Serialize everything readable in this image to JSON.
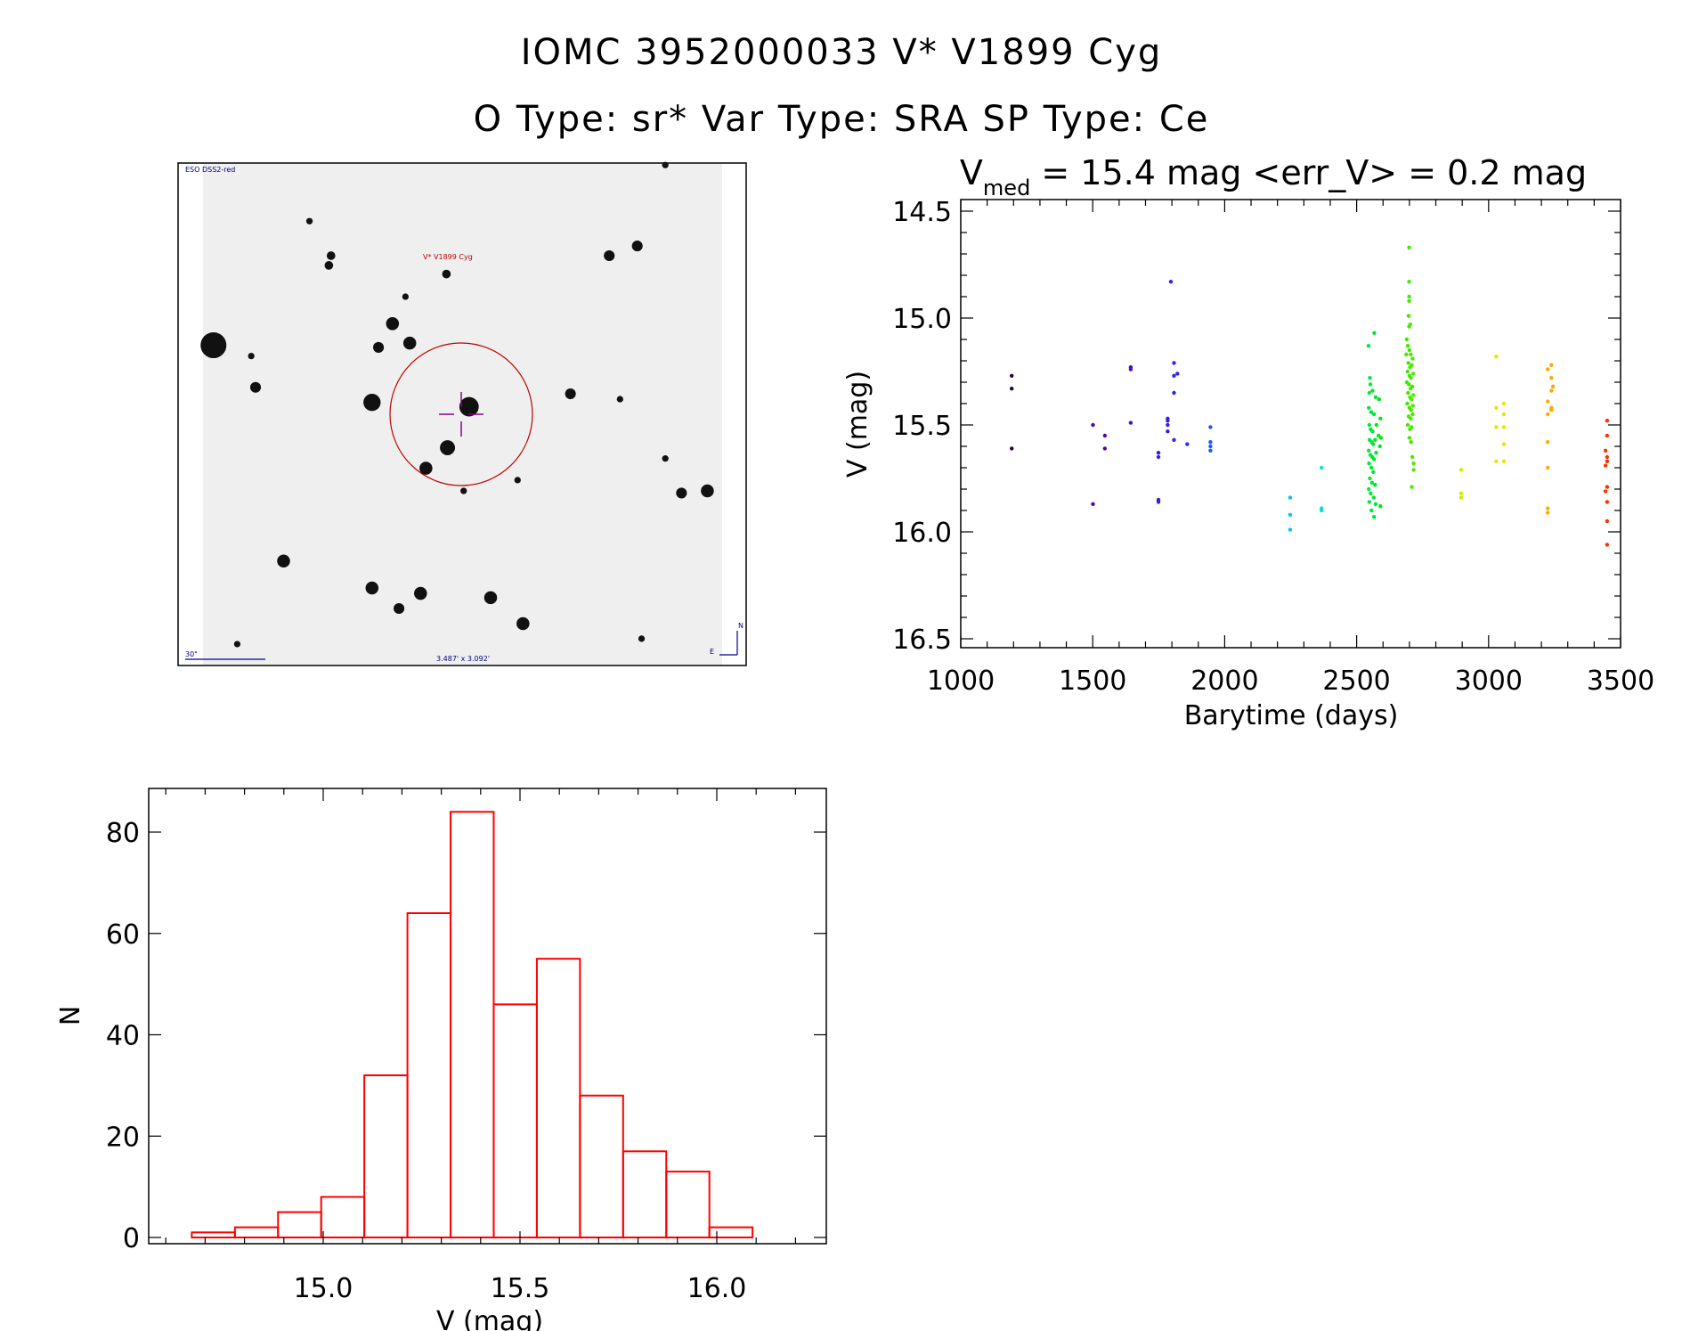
{
  "title": {
    "line1": "IOMC 3952000033    V* V1899 Cyg",
    "line2": "O Type: sr*   Var Type: SRA   SP Type: Ce"
  },
  "finder_image": {
    "survey_label": "ESO DSS2-red",
    "target_label": "V* V1899 Cyg",
    "scale_label": "30\"",
    "fov_label": "3.487' x 3.092'",
    "north_label": "N",
    "east_label": "E"
  },
  "chart_data": [
    {
      "type": "scatter",
      "title_prefix": "V",
      "title_subscript": "med",
      "title_rest": " = 15.4 mag <err_V> = 0.2 mag",
      "xlabel": "Barytime (days)",
      "ylabel": "V (mag)",
      "xlim": [
        1000,
        3500
      ],
      "ylim": [
        16.5,
        14.5
      ],
      "y_inverted": true,
      "xticks": [
        "1000",
        "1500",
        "2000",
        "2500",
        "3000",
        "3500"
      ],
      "yticks": [
        "14.5",
        "15.0",
        "15.5",
        "16.0",
        "16.5"
      ],
      "color_by": "time (rainbow)",
      "points": [
        [
          1193,
          15.27
        ],
        [
          1193,
          15.33
        ],
        [
          1193,
          15.61
        ],
        [
          1501,
          15.5
        ],
        [
          1501,
          15.87
        ],
        [
          1546,
          15.55
        ],
        [
          1546,
          15.61
        ],
        [
          1644,
          15.23
        ],
        [
          1644,
          15.24
        ],
        [
          1644,
          15.49
        ],
        [
          1749,
          15.63
        ],
        [
          1749,
          15.65
        ],
        [
          1749,
          15.85
        ],
        [
          1749,
          15.86
        ],
        [
          1796,
          14.83
        ],
        [
          1808,
          15.21
        ],
        [
          1808,
          15.27
        ],
        [
          1821,
          15.26
        ],
        [
          1808,
          15.35
        ],
        [
          1784,
          15.47
        ],
        [
          1784,
          15.48
        ],
        [
          1784,
          15.5
        ],
        [
          1784,
          15.53
        ],
        [
          1808,
          15.57
        ],
        [
          1858,
          15.59
        ],
        [
          1946,
          15.51
        ],
        [
          1946,
          15.58
        ],
        [
          1946,
          15.6
        ],
        [
          1946,
          15.62
        ],
        [
          2248,
          15.84
        ],
        [
          2248,
          15.92
        ],
        [
          2248,
          15.99
        ],
        [
          2367,
          15.7
        ],
        [
          2367,
          15.89
        ],
        [
          2367,
          15.9
        ],
        [
          2545,
          15.13
        ],
        [
          2567,
          15.07
        ],
        [
          2550,
          15.28
        ],
        [
          2552,
          15.31
        ],
        [
          2548,
          15.35
        ],
        [
          2560,
          15.34
        ],
        [
          2572,
          15.37
        ],
        [
          2585,
          15.38
        ],
        [
          2546,
          15.42
        ],
        [
          2555,
          15.44
        ],
        [
          2566,
          15.45
        ],
        [
          2590,
          15.47
        ],
        [
          2548,
          15.5
        ],
        [
          2553,
          15.52
        ],
        [
          2560,
          15.53
        ],
        [
          2575,
          15.5
        ],
        [
          2583,
          15.55
        ],
        [
          2592,
          15.56
        ],
        [
          2549,
          15.57
        ],
        [
          2557,
          15.58
        ],
        [
          2563,
          15.59
        ],
        [
          2570,
          15.57
        ],
        [
          2588,
          15.6
        ],
        [
          2546,
          15.62
        ],
        [
          2552,
          15.64
        ],
        [
          2559,
          15.65
        ],
        [
          2566,
          15.66
        ],
        [
          2574,
          15.63
        ],
        [
          2547,
          15.68
        ],
        [
          2556,
          15.7
        ],
        [
          2563,
          15.72
        ],
        [
          2550,
          15.75
        ],
        [
          2558,
          15.77
        ],
        [
          2570,
          15.78
        ],
        [
          2546,
          15.8
        ],
        [
          2553,
          15.82
        ],
        [
          2565,
          15.84
        ],
        [
          2548,
          15.86
        ],
        [
          2572,
          15.87
        ],
        [
          2590,
          15.88
        ],
        [
          2556,
          15.9
        ],
        [
          2566,
          15.93
        ],
        [
          2699,
          14.67
        ],
        [
          2699,
          14.83
        ],
        [
          2699,
          14.9
        ],
        [
          2699,
          14.92
        ],
        [
          2697,
          14.99
        ],
        [
          2699,
          15.04
        ],
        [
          2703,
          15.03
        ],
        [
          2690,
          15.1
        ],
        [
          2694,
          15.13
        ],
        [
          2700,
          15.15
        ],
        [
          2705,
          15.17
        ],
        [
          2712,
          15.19
        ],
        [
          2688,
          15.17
        ],
        [
          2696,
          15.21
        ],
        [
          2702,
          15.23
        ],
        [
          2709,
          15.22
        ],
        [
          2693,
          15.25
        ],
        [
          2700,
          15.27
        ],
        [
          2706,
          15.28
        ],
        [
          2714,
          15.26
        ],
        [
          2690,
          15.3
        ],
        [
          2698,
          15.31
        ],
        [
          2704,
          15.33
        ],
        [
          2711,
          15.32
        ],
        [
          2695,
          15.35
        ],
        [
          2702,
          15.37
        ],
        [
          2708,
          15.38
        ],
        [
          2715,
          15.36
        ],
        [
          2692,
          15.4
        ],
        [
          2700,
          15.42
        ],
        [
          2706,
          15.43
        ],
        [
          2713,
          15.41
        ],
        [
          2697,
          15.46
        ],
        [
          2705,
          15.47
        ],
        [
          2712,
          15.45
        ],
        [
          2694,
          15.5
        ],
        [
          2702,
          15.52
        ],
        [
          2708,
          15.51
        ],
        [
          2700,
          15.56
        ],
        [
          2706,
          15.58
        ],
        [
          2711,
          15.65
        ],
        [
          2716,
          15.68
        ],
        [
          2716,
          15.71
        ],
        [
          2709,
          15.79
        ],
        [
          2896,
          15.71
        ],
        [
          2896,
          15.82
        ],
        [
          2896,
          15.84
        ],
        [
          3029,
          15.18
        ],
        [
          3029,
          15.42
        ],
        [
          3029,
          15.51
        ],
        [
          3029,
          15.67
        ],
        [
          3058,
          15.4
        ],
        [
          3058,
          15.45
        ],
        [
          3058,
          15.51
        ],
        [
          3058,
          15.59
        ],
        [
          3058,
          15.67
        ],
        [
          3224,
          15.24
        ],
        [
          3238,
          15.22
        ],
        [
          3238,
          15.28
        ],
        [
          3244,
          15.32
        ],
        [
          3238,
          15.34
        ],
        [
          3224,
          15.39
        ],
        [
          3238,
          15.42
        ],
        [
          3238,
          15.43
        ],
        [
          3224,
          15.45
        ],
        [
          3224,
          15.58
        ],
        [
          3224,
          15.7
        ],
        [
          3224,
          15.89
        ],
        [
          3224,
          15.91
        ],
        [
          3449,
          15.48
        ],
        [
          3449,
          15.55
        ],
        [
          3443,
          15.62
        ],
        [
          3449,
          15.65
        ],
        [
          3449,
          15.67
        ],
        [
          3443,
          15.69
        ],
        [
          3449,
          15.79
        ],
        [
          3443,
          15.81
        ],
        [
          3449,
          15.86
        ],
        [
          3449,
          15.95
        ],
        [
          3449,
          16.06
        ]
      ]
    },
    {
      "type": "bar",
      "subtype": "histogram",
      "xlabel": "V (mag)",
      "ylabel": "N",
      "xlim": [
        14.557,
        16.28
      ],
      "ylim": [
        0,
        88
      ],
      "xticks": [
        "15.0",
        "15.5",
        "16.0"
      ],
      "yticks": [
        "0",
        "20",
        "40",
        "60",
        "80"
      ],
      "bin_start": 14.666,
      "bin_width": 0.1096,
      "values": [
        1,
        2,
        5,
        8,
        32,
        64,
        84,
        46,
        55,
        28,
        17,
        13,
        2
      ],
      "bar_color": "#ff0000"
    }
  ]
}
